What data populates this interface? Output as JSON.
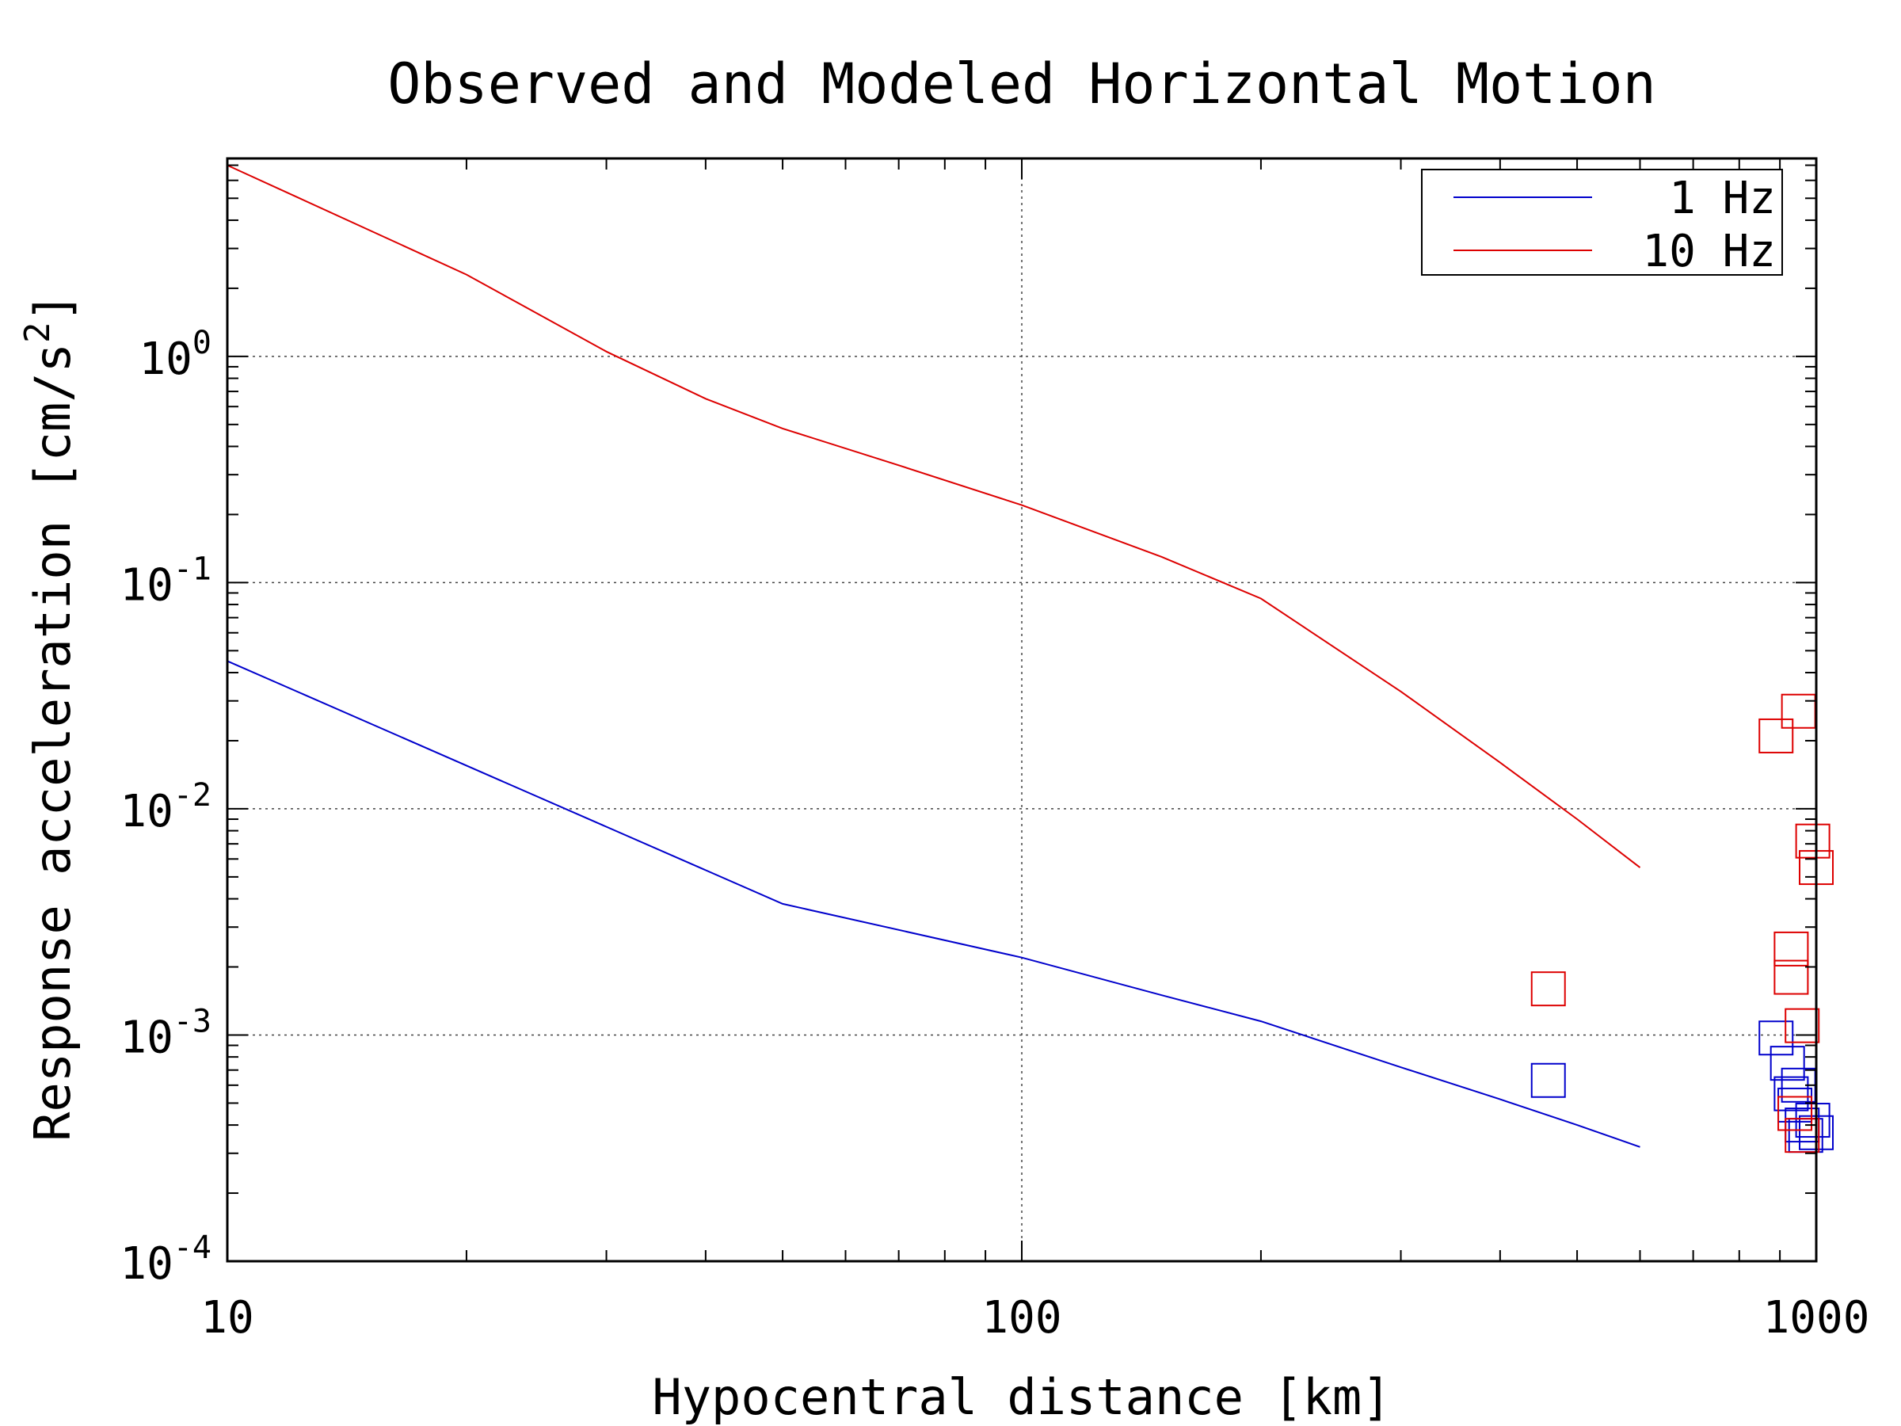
{
  "chart_data": {
    "type": "line",
    "title": "Observed and Modeled Horizontal Motion",
    "xlabel": "Hypocentral distance [km]",
    "ylabel": "Response acceleration [cm/s",
    "ylabel_sup": "2",
    "ylabel_end": "]",
    "x_scale": "log",
    "y_scale": "log",
    "xlim": [
      10,
      1000
    ],
    "ylim": [
      0.0001,
      7.5
    ],
    "x_ticks": [
      {
        "value": 10,
        "label": "10"
      },
      {
        "value": 100,
        "label": "100"
      },
      {
        "value": 1000,
        "label": "1000"
      }
    ],
    "y_ticks": [
      {
        "value": 1,
        "base": "10",
        "exp": "0"
      },
      {
        "value": 0.1,
        "base": "10",
        "exp": "-1"
      },
      {
        "value": 0.01,
        "base": "10",
        "exp": "-2"
      },
      {
        "value": 0.001,
        "base": "10",
        "exp": "-3"
      },
      {
        "value": 0.0001,
        "base": "10",
        "exp": "-4"
      }
    ],
    "grid": true,
    "legend_position": "top-right",
    "series": [
      {
        "name": "1 Hz",
        "color": "#0000cc",
        "line": {
          "x": [
            10,
            50,
            100,
            150,
            200,
            300,
            400,
            500,
            600
          ],
          "y": [
            0.045,
            0.0038,
            0.0022,
            0.0015,
            0.00115,
            0.00072,
            0.00052,
            0.0004,
            0.00032
          ]
        },
        "observed": {
          "x": [
            460,
            890,
            920,
            930,
            940,
            950,
            960,
            970,
            990,
            1000
          ],
          "y": [
            0.00063,
            0.00097,
            0.00075,
            0.00055,
            0.00049,
            0.0006,
            0.0004,
            0.00036,
            0.00042,
            0.00037
          ]
        }
      },
      {
        "name": "10 Hz",
        "color": "#dd0000",
        "line": {
          "x": [
            10,
            20,
            30,
            40,
            50,
            70,
            100,
            150,
            200,
            300,
            400,
            500,
            600
          ],
          "y": [
            7.0,
            2.3,
            1.05,
            0.65,
            0.48,
            0.33,
            0.22,
            0.13,
            0.085,
            0.033,
            0.016,
            0.009,
            0.0055
          ]
        },
        "observed": {
          "x": [
            460,
            890,
            950,
            930,
            930,
            960,
            990,
            1000,
            940,
            960
          ],
          "y": [
            0.0016,
            0.021,
            0.027,
            0.0024,
            0.0018,
            0.0011,
            0.0072,
            0.0055,
            0.00045,
            0.00036
          ]
        }
      }
    ]
  }
}
